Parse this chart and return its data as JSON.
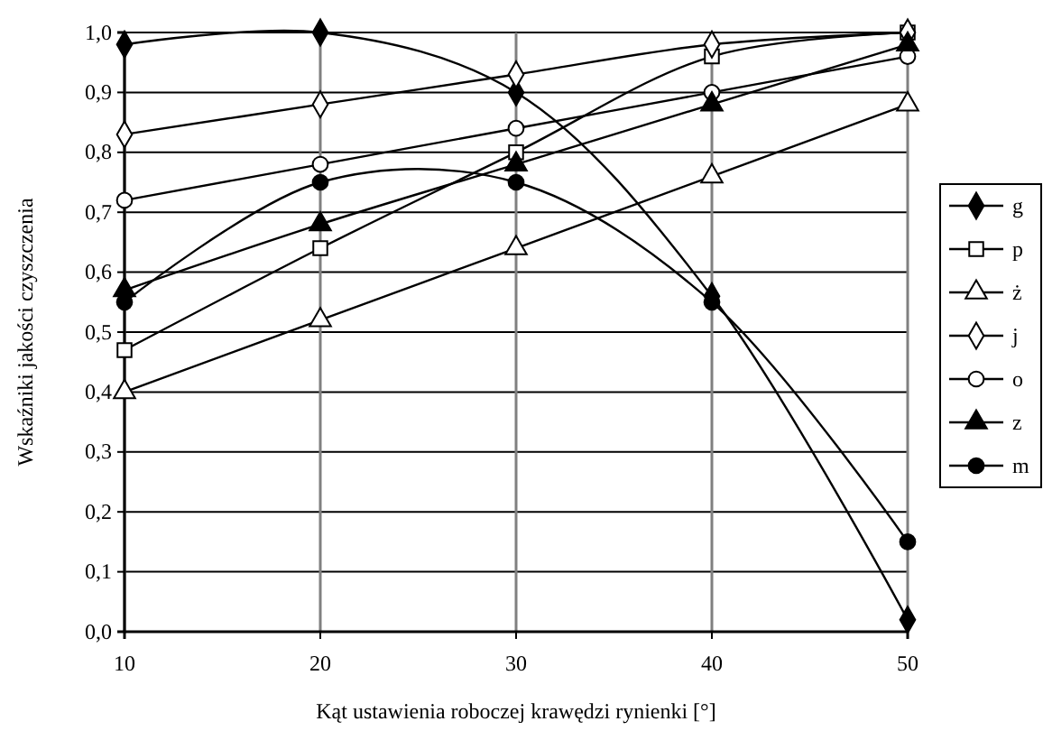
{
  "chart_data": {
    "type": "line",
    "xlabel": "Kąt ustawienia roboczej krawędzi rynienki [°]",
    "ylabel": "Wskaźniki jakości czyszczenia",
    "x": [
      10,
      20,
      30,
      40,
      50
    ],
    "xlim": [
      10,
      50
    ],
    "xticks": [
      10,
      20,
      30,
      40,
      50
    ],
    "ylim": [
      0,
      1
    ],
    "yticks": [
      {
        "value": 0,
        "label": "0,0"
      },
      {
        "value": 0.1,
        "label": "0,1"
      },
      {
        "value": 0.2,
        "label": "0,2"
      },
      {
        "value": 0.3,
        "label": "0,3"
      },
      {
        "value": 0.4,
        "label": "0,4"
      },
      {
        "value": 0.5,
        "label": "0,5"
      },
      {
        "value": 0.6,
        "label": "0,6"
      },
      {
        "value": 0.7,
        "label": "0,7"
      },
      {
        "value": 0.8,
        "label": "0,8"
      },
      {
        "value": 0.9,
        "label": "0,9"
      },
      {
        "value": 1,
        "label": "1,0"
      }
    ],
    "grid": true,
    "legend": "right",
    "line_style": "solid",
    "series": [
      {
        "name": "g",
        "color": "#000000",
        "marker": "diamond",
        "values": [
          0.98,
          1.0,
          0.9,
          0.56,
          0.02
        ]
      },
      {
        "name": "p",
        "color": "#000000",
        "marker": "square",
        "values": [
          0.47,
          0.64,
          0.8,
          0.96,
          1.0
        ]
      },
      {
        "name": "ż",
        "color": "#000000",
        "marker": "triangle",
        "values": [
          0.4,
          0.52,
          0.64,
          0.76,
          0.88
        ]
      },
      {
        "name": "j",
        "color": "#000000",
        "marker": "diamond",
        "values": [
          0.83,
          0.88,
          0.93,
          0.98,
          1.0
        ]
      },
      {
        "name": "o",
        "color": "#000000",
        "marker": "circle",
        "values": [
          0.72,
          0.78,
          0.84,
          0.9,
          0.96
        ]
      },
      {
        "name": "z",
        "color": "#000000",
        "marker": "triangle",
        "values": [
          0.57,
          0.68,
          0.78,
          0.88,
          0.98
        ]
      },
      {
        "name": "m",
        "color": "#000000",
        "marker": "circle",
        "values": [
          0.55,
          0.75,
          0.75,
          0.55,
          0.15
        ]
      }
    ]
  }
}
